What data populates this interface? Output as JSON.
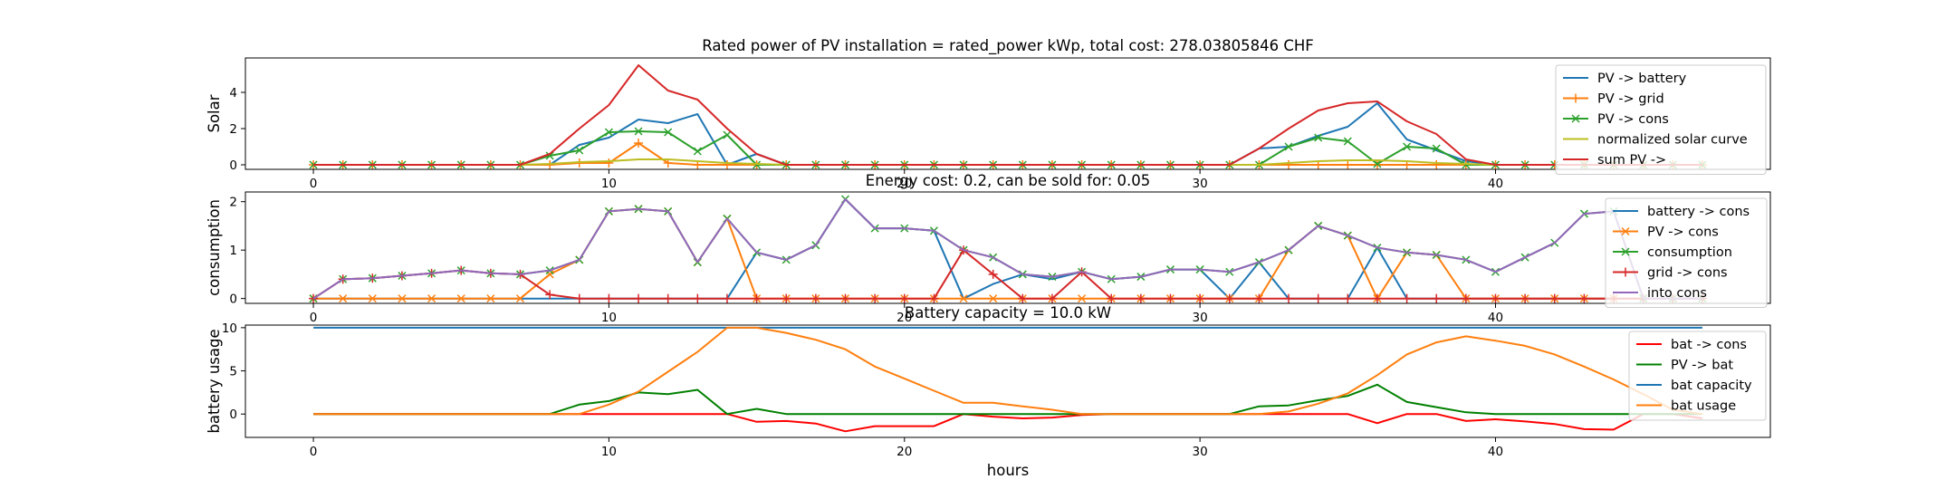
{
  "figure_title": "Rated power of PV installation = rated_power kWp, total cost: 278.03805846 CHF",
  "xlabel": "hours",
  "chart_data": [
    {
      "type": "line",
      "title": "",
      "ylabel": "Solar",
      "xlim": [
        -2.3,
        49.3
      ],
      "ylim": [
        -0.25,
        5.9
      ],
      "xticks": [
        0,
        10,
        20,
        30,
        40
      ],
      "yticks": [
        0,
        2,
        4
      ],
      "legend_position": "top-right",
      "x": [
        0,
        1,
        2,
        3,
        4,
        5,
        6,
        7,
        8,
        9,
        10,
        11,
        12,
        13,
        14,
        15,
        16,
        17,
        18,
        19,
        20,
        21,
        22,
        23,
        24,
        25,
        26,
        27,
        28,
        29,
        30,
        31,
        32,
        33,
        34,
        35,
        36,
        37,
        38,
        39,
        40,
        41,
        42,
        43,
        44,
        45,
        46,
        47
      ],
      "series": [
        {
          "name": "PV -> battery",
          "color": "#1f77b4",
          "marker": "none",
          "values": [
            0,
            0,
            0,
            0,
            0,
            0,
            0,
            0,
            0,
            1.1,
            1.5,
            2.5,
            2.3,
            2.8,
            0,
            0.6,
            0,
            0,
            0,
            0,
            0,
            0,
            0,
            0,
            0,
            0,
            0,
            0,
            0,
            0,
            0,
            0,
            0.9,
            1.0,
            1.6,
            2.1,
            3.4,
            1.4,
            0.8,
            0.2,
            0,
            0,
            0,
            0,
            0,
            0,
            0,
            0
          ]
        },
        {
          "name": "PV -> grid",
          "color": "#ff7f0e",
          "marker": "plus",
          "values": [
            0,
            0,
            0,
            0,
            0,
            0,
            0,
            0,
            0,
            0.1,
            0.1,
            1.2,
            0.1,
            0,
            0,
            0,
            0,
            0,
            0,
            0,
            0,
            0,
            0,
            0,
            0,
            0,
            0,
            0,
            0,
            0,
            0,
            0,
            0,
            0,
            0,
            0,
            0,
            0,
            0,
            0,
            0,
            0,
            0,
            0,
            0,
            0,
            0,
            0
          ]
        },
        {
          "name": "PV -> cons",
          "color": "#2ca02c",
          "marker": "x",
          "values": [
            0,
            0,
            0,
            0,
            0,
            0,
            0,
            0,
            0.5,
            0.8,
            1.8,
            1.85,
            1.8,
            0.75,
            1.65,
            0,
            0,
            0,
            0,
            0,
            0,
            0,
            0,
            0,
            0,
            0,
            0,
            0,
            0,
            0,
            0,
            0,
            0,
            1.0,
            1.5,
            1.3,
            0.05,
            1.0,
            0.9,
            0,
            0,
            0,
            0,
            0,
            0,
            0,
            0,
            0
          ]
        },
        {
          "name": "normalized solar curve",
          "color": "#bcbd22",
          "marker": "none",
          "values": [
            0,
            0,
            0,
            0,
            0,
            0,
            0,
            0,
            0.05,
            0.15,
            0.2,
            0.3,
            0.3,
            0.2,
            0.1,
            0.05,
            0,
            0,
            0,
            0,
            0,
            0,
            0,
            0,
            0,
            0,
            0,
            0,
            0,
            0,
            0,
            0,
            0,
            0.1,
            0.2,
            0.25,
            0.25,
            0.2,
            0.1,
            0.05,
            0,
            0,
            0,
            0,
            0,
            0,
            0,
            0
          ]
        },
        {
          "name": "sum PV ->",
          "color": "#d62728",
          "marker": "none",
          "values": [
            0,
            0,
            0,
            0,
            0,
            0,
            0,
            0,
            0.6,
            2.0,
            3.3,
            5.5,
            4.1,
            3.6,
            2.0,
            0.6,
            0,
            0,
            0,
            0,
            0,
            0,
            0,
            0,
            0,
            0,
            0,
            0,
            0,
            0,
            0,
            0,
            0.9,
            2.0,
            3.0,
            3.4,
            3.5,
            2.4,
            1.7,
            0.3,
            0,
            0,
            0,
            0,
            0,
            0,
            0,
            0
          ]
        }
      ]
    },
    {
      "type": "line",
      "title": "Energy cost: 0.2, can be sold for: 0.05",
      "ylabel": "consumption",
      "xlim": [
        -2.3,
        49.3
      ],
      "ylim": [
        -0.1,
        2.2
      ],
      "xticks": [
        0,
        10,
        20,
        30,
        40
      ],
      "yticks": [
        0,
        1,
        2
      ],
      "legend_position": "top-right",
      "x": [
        0,
        1,
        2,
        3,
        4,
        5,
        6,
        7,
        8,
        9,
        10,
        11,
        12,
        13,
        14,
        15,
        16,
        17,
        18,
        19,
        20,
        21,
        22,
        23,
        24,
        25,
        26,
        27,
        28,
        29,
        30,
        31,
        32,
        33,
        34,
        35,
        36,
        37,
        38,
        39,
        40,
        41,
        42,
        43,
        44,
        45,
        46,
        47
      ],
      "series": [
        {
          "name": "battery -> cons",
          "color": "#1f77b4",
          "marker": "none",
          "values": [
            0,
            0,
            0,
            0,
            0,
            0,
            0,
            0,
            0,
            0,
            0,
            0,
            0,
            0,
            0,
            0.95,
            0.8,
            1.1,
            2.05,
            1.45,
            1.45,
            1.4,
            0,
            0.3,
            0.5,
            0.4,
            0.55,
            0.4,
            0.45,
            0.6,
            0.6,
            0,
            0.75,
            0,
            0,
            0,
            1.05,
            0,
            0,
            0,
            0,
            0,
            0,
            0,
            0,
            0,
            0,
            0
          ]
        },
        {
          "name": "PV -> cons",
          "color": "#ff7f0e",
          "marker": "x",
          "values": [
            0,
            0,
            0,
            0,
            0,
            0,
            0,
            0,
            0.5,
            0.8,
            1.8,
            1.85,
            1.8,
            0.75,
            1.65,
            0,
            0,
            0,
            0,
            0,
            0,
            0,
            0,
            0,
            0,
            0,
            0,
            0,
            0,
            0,
            0,
            0,
            0,
            1.0,
            1.5,
            1.3,
            0,
            0.95,
            0.9,
            0,
            0,
            0,
            0,
            0,
            0,
            0,
            0,
            0
          ]
        },
        {
          "name": "consumption",
          "color": "#2ca02c",
          "marker": "x",
          "values": [
            0,
            0.4,
            0.42,
            0.47,
            0.52,
            0.58,
            0.52,
            0.5,
            0.58,
            0.8,
            1.8,
            1.85,
            1.8,
            0.75,
            1.65,
            0.95,
            0.8,
            1.1,
            2.05,
            1.45,
            1.45,
            1.4,
            1.0,
            0.85,
            0.5,
            0.45,
            0.55,
            0.4,
            0.45,
            0.6,
            0.6,
            0.55,
            0.75,
            1.0,
            1.5,
            1.3,
            1.05,
            0.95,
            0.9,
            0.8,
            0.55,
            0.85,
            1.15,
            1.75,
            1.8,
            0,
            0,
            0
          ]
        },
        {
          "name": "grid -> cons",
          "color": "#d62728",
          "marker": "plus",
          "values": [
            0,
            0.4,
            0.42,
            0.47,
            0.52,
            0.58,
            0.52,
            0.5,
            0.08,
            0,
            0,
            0,
            0,
            0,
            0,
            0,
            0,
            0,
            0,
            0,
            0,
            0,
            1.0,
            0.5,
            0,
            0,
            0.55,
            0,
            0,
            0,
            0,
            0,
            0,
            0,
            0,
            0,
            0,
            0,
            0,
            0,
            0,
            0,
            0,
            0,
            0,
            0,
            0,
            0
          ]
        },
        {
          "name": "into cons",
          "color": "#9467bd",
          "marker": "none",
          "values": [
            0,
            0.4,
            0.42,
            0.47,
            0.52,
            0.58,
            0.52,
            0.5,
            0.58,
            0.8,
            1.8,
            1.85,
            1.8,
            0.75,
            1.65,
            0.95,
            0.8,
            1.1,
            2.05,
            1.45,
            1.45,
            1.4,
            1.0,
            0.85,
            0.5,
            0.45,
            0.55,
            0.4,
            0.45,
            0.6,
            0.6,
            0.55,
            0.75,
            1.0,
            1.5,
            1.3,
            1.05,
            0.95,
            0.9,
            0.8,
            0.55,
            0.85,
            1.15,
            1.75,
            1.8,
            0,
            0,
            0
          ]
        }
      ]
    },
    {
      "type": "line",
      "title": "Battery capacity = 10.0 kW",
      "ylabel": "battery usage",
      "xlim": [
        -2.3,
        49.3
      ],
      "ylim": [
        -2.7,
        10.3
      ],
      "xticks": [
        0,
        10,
        20,
        30,
        40
      ],
      "yticks": [
        0,
        5,
        10
      ],
      "legend_position": "top-right",
      "x": [
        0,
        1,
        2,
        3,
        4,
        5,
        6,
        7,
        8,
        9,
        10,
        11,
        12,
        13,
        14,
        15,
        16,
        17,
        18,
        19,
        20,
        21,
        22,
        23,
        24,
        25,
        26,
        27,
        28,
        29,
        30,
        31,
        32,
        33,
        34,
        35,
        36,
        37,
        38,
        39,
        40,
        41,
        42,
        43,
        44,
        45,
        46,
        47
      ],
      "series": [
        {
          "name": "bat -> cons",
          "color": "#ff0000",
          "marker": "none",
          "values": [
            0,
            0,
            0,
            0,
            0,
            0,
            0,
            0,
            0,
            0,
            0,
            0,
            0,
            0,
            0,
            -0.9,
            -0.8,
            -1.1,
            -2.0,
            -1.4,
            -1.4,
            -1.4,
            0,
            -0.3,
            -0.5,
            -0.4,
            -0.1,
            0,
            0,
            0,
            0,
            0,
            0,
            0,
            0,
            0,
            -1.05,
            0,
            0,
            -0.8,
            -0.6,
            -0.85,
            -1.15,
            -1.75,
            -1.8,
            0,
            0,
            -0.5
          ]
        },
        {
          "name": "PV -> bat",
          "color": "#008000",
          "marker": "none",
          "values": [
            0,
            0,
            0,
            0,
            0,
            0,
            0,
            0,
            0,
            1.1,
            1.5,
            2.5,
            2.3,
            2.8,
            0,
            0.6,
            0,
            0,
            0,
            0,
            0,
            0,
            0,
            0,
            0,
            0,
            0,
            0,
            0,
            0,
            0,
            0,
            0.9,
            1.0,
            1.6,
            2.1,
            3.4,
            1.4,
            0.8,
            0.2,
            0,
            0,
            0,
            0,
            0,
            0,
            0,
            0
          ]
        },
        {
          "name": "bat capacity",
          "color": "#1f77b4",
          "marker": "none",
          "values": [
            10,
            10,
            10,
            10,
            10,
            10,
            10,
            10,
            10,
            10,
            10,
            10,
            10,
            10,
            10,
            10,
            10,
            10,
            10,
            10,
            10,
            10,
            10,
            10,
            10,
            10,
            10,
            10,
            10,
            10,
            10,
            10,
            10,
            10,
            10,
            10,
            10,
            10,
            10,
            10,
            10,
            10,
            10,
            10,
            10,
            10,
            10,
            10
          ]
        },
        {
          "name": "bat usage",
          "color": "#ff7f0e",
          "marker": "none",
          "values": [
            0,
            0,
            0,
            0,
            0,
            0,
            0,
            0,
            0,
            0,
            1.1,
            2.6,
            4.9,
            7.2,
            10.0,
            10.0,
            9.4,
            8.6,
            7.5,
            5.5,
            4.1,
            2.7,
            1.3,
            1.3,
            0.9,
            0.5,
            0,
            0,
            0,
            0,
            0,
            0,
            0,
            0.3,
            1.2,
            2.4,
            4.5,
            6.9,
            8.3,
            9.0,
            8.5,
            7.9,
            6.9,
            5.5,
            4.0,
            2.3,
            0.5,
            0
          ]
        }
      ]
    }
  ]
}
